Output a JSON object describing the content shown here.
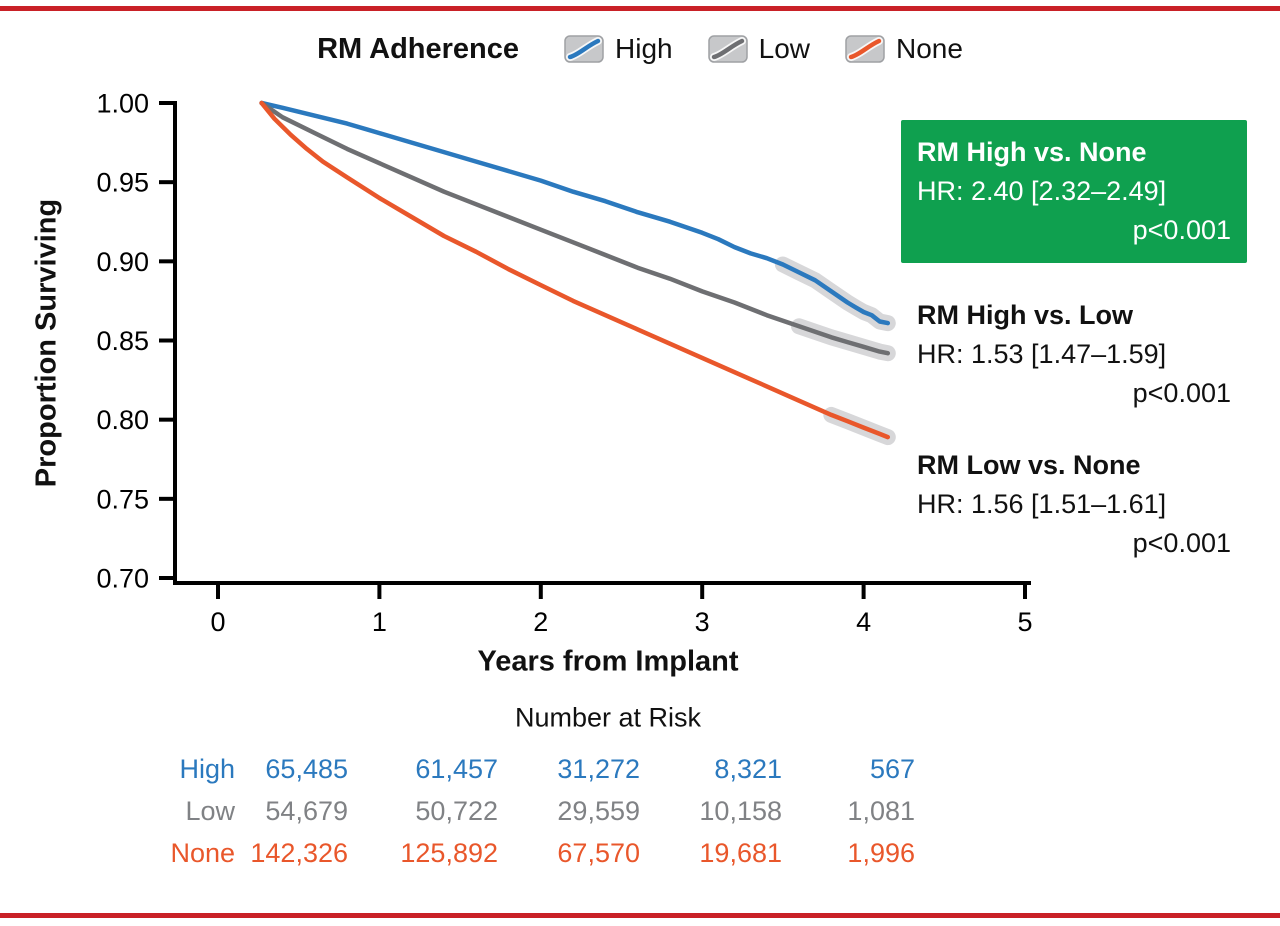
{
  "legend": {
    "title": "RM Adherence",
    "items": [
      {
        "label": "High",
        "color": "#2B79BE"
      },
      {
        "label": "Low",
        "color": "#6E6F72"
      },
      {
        "label": "None",
        "color": "#E9572B"
      }
    ]
  },
  "annotations": [
    {
      "title": "RM High vs. None",
      "hr": "HR: 2.40 [2.32–2.49]",
      "p": "p<0.001",
      "style": "green-box"
    },
    {
      "title": "RM High vs. Low",
      "hr": "HR: 1.53 [1.47–1.59]",
      "p": "p<0.001",
      "style": "plain"
    },
    {
      "title": "RM Low vs. None",
      "hr": "HR: 1.56 [1.51–1.61]",
      "p": "p<0.001",
      "style": "plain"
    }
  ],
  "risk_table": {
    "title": "Number at Risk",
    "rows": [
      {
        "label": "High",
        "color": "#2B79BE",
        "values": [
          "65,485",
          "61,457",
          "31,272",
          "8,321",
          "567"
        ]
      },
      {
        "label": "Low",
        "color": "#808285",
        "values": [
          "54,679",
          "50,722",
          "29,559",
          "10,158",
          "1,081"
        ]
      },
      {
        "label": "None",
        "color": "#E9572B",
        "values": [
          "142,326",
          "125,892",
          "67,570",
          "19,681",
          "1,996"
        ]
      }
    ]
  },
  "colors": {
    "border_red": "#C92127",
    "annotation_green": "#0FA04F",
    "ci_band": "#D7D7D9",
    "axis": "#000000"
  },
  "chart_data": {
    "type": "line",
    "title": "RM Adherence",
    "xlabel": "Years from Implant",
    "ylabel": "Proportion Surviving",
    "xlim": [
      0,
      5
    ],
    "ylim": [
      0.7,
      1.0
    ],
    "x_ticks": [
      0,
      1,
      2,
      3,
      4,
      5
    ],
    "y_ticks": [
      1.0,
      0.95,
      0.9,
      0.85,
      0.8,
      0.75,
      0.7
    ],
    "grid": false,
    "legend_position": "top",
    "series": [
      {
        "name": "High",
        "color": "#2B79BE",
        "ci_from": 3.5,
        "points": [
          [
            0.27,
            1.0
          ],
          [
            0.4,
            0.997
          ],
          [
            0.6,
            0.992
          ],
          [
            0.8,
            0.987
          ],
          [
            1.0,
            0.981
          ],
          [
            1.2,
            0.975
          ],
          [
            1.4,
            0.969
          ],
          [
            1.6,
            0.963
          ],
          [
            1.8,
            0.957
          ],
          [
            2.0,
            0.951
          ],
          [
            2.2,
            0.944
          ],
          [
            2.4,
            0.938
          ],
          [
            2.6,
            0.931
          ],
          [
            2.8,
            0.925
          ],
          [
            3.0,
            0.918
          ],
          [
            3.1,
            0.914
          ],
          [
            3.2,
            0.909
          ],
          [
            3.3,
            0.905
          ],
          [
            3.4,
            0.902
          ],
          [
            3.5,
            0.898
          ],
          [
            3.6,
            0.893
          ],
          [
            3.7,
            0.888
          ],
          [
            3.8,
            0.881
          ],
          [
            3.9,
            0.874
          ],
          [
            3.95,
            0.871
          ],
          [
            4.0,
            0.868
          ],
          [
            4.05,
            0.866
          ],
          [
            4.1,
            0.862
          ],
          [
            4.15,
            0.861
          ]
        ]
      },
      {
        "name": "Low",
        "color": "#6E6F72",
        "ci_from": 3.5,
        "points": [
          [
            0.27,
            1.0
          ],
          [
            0.4,
            0.991
          ],
          [
            0.6,
            0.981
          ],
          [
            0.8,
            0.971
          ],
          [
            1.0,
            0.962
          ],
          [
            1.2,
            0.953
          ],
          [
            1.4,
            0.944
          ],
          [
            1.6,
            0.936
          ],
          [
            1.8,
            0.928
          ],
          [
            2.0,
            0.92
          ],
          [
            2.2,
            0.912
          ],
          [
            2.4,
            0.904
          ],
          [
            2.6,
            0.896
          ],
          [
            2.8,
            0.889
          ],
          [
            3.0,
            0.881
          ],
          [
            3.2,
            0.874
          ],
          [
            3.4,
            0.866
          ],
          [
            3.6,
            0.859
          ],
          [
            3.8,
            0.852
          ],
          [
            3.9,
            0.849
          ],
          [
            4.0,
            0.846
          ],
          [
            4.1,
            0.843
          ],
          [
            4.15,
            0.842
          ]
        ]
      },
      {
        "name": "None",
        "color": "#E9572B",
        "ci_from": 3.7,
        "points": [
          [
            0.27,
            1.0
          ],
          [
            0.35,
            0.99
          ],
          [
            0.45,
            0.98
          ],
          [
            0.55,
            0.971
          ],
          [
            0.65,
            0.963
          ],
          [
            0.8,
            0.953
          ],
          [
            1.0,
            0.94
          ],
          [
            1.2,
            0.928
          ],
          [
            1.4,
            0.916
          ],
          [
            1.6,
            0.906
          ],
          [
            1.8,
            0.895
          ],
          [
            2.0,
            0.885
          ],
          [
            2.2,
            0.875
          ],
          [
            2.4,
            0.866
          ],
          [
            2.6,
            0.857
          ],
          [
            2.8,
            0.848
          ],
          [
            3.0,
            0.839
          ],
          [
            3.2,
            0.83
          ],
          [
            3.4,
            0.821
          ],
          [
            3.6,
            0.812
          ],
          [
            3.8,
            0.803
          ],
          [
            3.9,
            0.799
          ],
          [
            4.0,
            0.795
          ],
          [
            4.1,
            0.791
          ],
          [
            4.15,
            0.789
          ]
        ]
      }
    ]
  }
}
